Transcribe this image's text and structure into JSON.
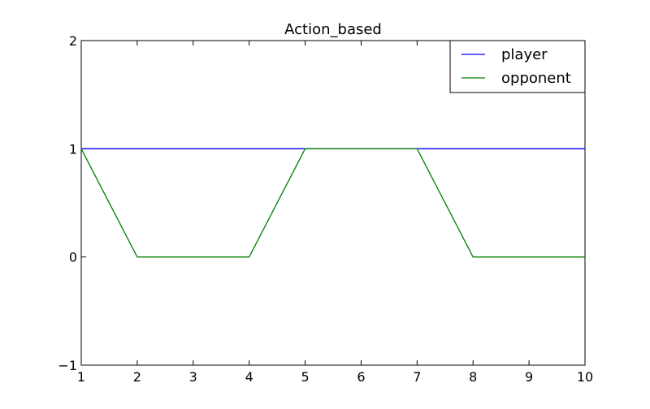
{
  "chart_data": {
    "type": "line",
    "title": "Action_based",
    "xlabel": "",
    "ylabel": "",
    "xlim": [
      1,
      10
    ],
    "ylim": [
      -1,
      2
    ],
    "x_ticks": [
      1,
      2,
      3,
      4,
      5,
      6,
      7,
      8,
      9,
      10
    ],
    "y_ticks": [
      -1,
      0,
      1,
      2
    ],
    "y_tick_labels": [
      "−1",
      "0",
      "1",
      "2"
    ],
    "grid": false,
    "legend_position": "top-right",
    "series": [
      {
        "name": "player",
        "color": "#0000ff",
        "x": [
          1,
          2,
          3,
          4,
          5,
          6,
          7,
          8,
          9,
          10
        ],
        "y": [
          1,
          1,
          1,
          1,
          1,
          1,
          1,
          1,
          1,
          1
        ]
      },
      {
        "name": "opponent",
        "color": "#008000",
        "x": [
          1,
          2,
          3,
          4,
          5,
          6,
          7,
          8,
          9,
          10
        ],
        "y": [
          1,
          0,
          0,
          0,
          1,
          1,
          1,
          0,
          0,
          0
        ]
      }
    ]
  }
}
